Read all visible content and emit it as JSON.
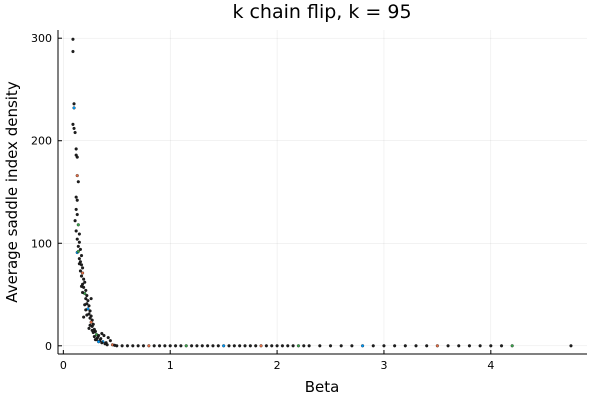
{
  "chart_data": {
    "type": "scatter",
    "title": "k chain flip, k = 95",
    "xlabel": "Beta",
    "ylabel": "Average saddle index density",
    "xlim": [
      -0.05,
      4.9
    ],
    "ylim": [
      -8,
      308
    ],
    "xticks": [
      0,
      1,
      2,
      3,
      4
    ],
    "yticks": [
      0,
      100,
      200,
      300
    ],
    "grid": true,
    "legend": "none",
    "marker_color": "#1f1f1f",
    "marker_accent_colors": [
      "#009af9",
      "#e26f46",
      "#3da44d"
    ],
    "series": [
      {
        "points": [
          [
            0.09,
            299
          ],
          [
            0.09,
            287
          ],
          [
            0.1,
            236
          ],
          [
            0.1,
            232
          ],
          [
            0.09,
            216
          ],
          [
            0.1,
            212
          ],
          [
            0.11,
            208
          ],
          [
            0.12,
            192
          ],
          [
            0.12,
            186
          ],
          [
            0.13,
            184
          ],
          [
            0.13,
            166
          ],
          [
            0.14,
            160
          ],
          [
            0.12,
            145
          ],
          [
            0.13,
            142
          ],
          [
            0.12,
            133
          ],
          [
            0.13,
            128
          ],
          [
            0.11,
            122
          ],
          [
            0.14,
            118
          ],
          [
            0.12,
            112
          ],
          [
            0.15,
            109
          ],
          [
            0.13,
            104
          ],
          [
            0.15,
            101
          ],
          [
            0.14,
            97
          ],
          [
            0.16,
            94
          ],
          [
            0.13,
            91
          ],
          [
            0.17,
            88
          ],
          [
            0.15,
            85
          ],
          [
            0.16,
            82
          ],
          [
            0.17,
            79
          ],
          [
            0.18,
            76
          ],
          [
            0.16,
            73
          ],
          [
            0.18,
            71
          ],
          [
            0.17,
            68
          ],
          [
            0.19,
            65
          ],
          [
            0.2,
            62
          ],
          [
            0.18,
            60
          ],
          [
            0.19,
            57
          ],
          [
            0.21,
            54
          ],
          [
            0.2,
            51
          ],
          [
            0.22,
            49
          ],
          [
            0.21,
            46
          ],
          [
            0.23,
            44
          ],
          [
            0.22,
            41
          ],
          [
            0.24,
            39
          ],
          [
            0.26,
            46
          ],
          [
            0.23,
            36
          ],
          [
            0.25,
            34
          ],
          [
            0.24,
            31
          ],
          [
            0.26,
            29
          ],
          [
            0.19,
            28
          ],
          [
            0.25,
            27
          ],
          [
            0.27,
            25
          ],
          [
            0.26,
            23
          ],
          [
            0.28,
            21
          ],
          [
            0.27,
            19
          ],
          [
            0.24,
            17
          ],
          [
            0.29,
            16
          ],
          [
            0.3,
            14
          ],
          [
            0.28,
            13
          ],
          [
            0.31,
            11
          ],
          [
            0.33,
            10
          ],
          [
            0.29,
            9
          ],
          [
            0.32,
            8
          ],
          [
            0.35,
            7
          ],
          [
            0.3,
            6
          ],
          [
            0.34,
            5
          ],
          [
            0.37,
            4
          ],
          [
            0.36,
            3
          ],
          [
            0.4,
            3
          ],
          [
            0.39,
            2
          ],
          [
            0.42,
            8
          ],
          [
            0.44,
            5
          ],
          [
            0.41,
            1
          ],
          [
            0.46,
            1
          ],
          [
            0.48,
            0.5
          ],
          [
            0.36,
            12
          ],
          [
            0.38,
            10
          ],
          [
            0.21,
            35
          ],
          [
            0.18,
            52
          ],
          [
            0.15,
            80
          ],
          [
            0.14,
            92
          ],
          [
            0.17,
            58
          ],
          [
            0.2,
            40
          ],
          [
            0.22,
            30
          ],
          [
            0.25,
            20
          ],
          [
            0.27,
            15
          ],
          [
            0.31,
            6
          ],
          [
            0.33,
            4
          ]
        ]
      },
      {
        "points": [
          [
            0.5,
            0
          ],
          [
            0.55,
            0
          ],
          [
            0.6,
            0
          ],
          [
            0.65,
            0
          ],
          [
            0.7,
            0
          ],
          [
            0.75,
            0
          ],
          [
            0.8,
            0
          ],
          [
            0.85,
            0
          ],
          [
            0.9,
            0
          ],
          [
            0.95,
            0
          ],
          [
            1.0,
            0
          ],
          [
            1.05,
            0
          ],
          [
            1.1,
            0
          ],
          [
            1.15,
            0
          ],
          [
            1.2,
            0
          ],
          [
            1.25,
            0
          ],
          [
            1.3,
            0
          ],
          [
            1.35,
            0
          ],
          [
            1.4,
            0
          ],
          [
            1.45,
            0
          ],
          [
            1.5,
            0
          ],
          [
            1.55,
            0
          ],
          [
            1.6,
            0
          ],
          [
            1.65,
            0
          ],
          [
            1.7,
            0
          ],
          [
            1.75,
            0
          ],
          [
            1.8,
            0
          ],
          [
            1.85,
            0
          ],
          [
            1.9,
            0
          ],
          [
            1.95,
            0
          ],
          [
            2.0,
            0
          ],
          [
            2.05,
            0
          ],
          [
            2.1,
            0
          ],
          [
            2.15,
            0
          ],
          [
            2.2,
            0
          ],
          [
            2.25,
            0
          ],
          [
            2.3,
            0
          ],
          [
            2.4,
            0
          ],
          [
            2.5,
            0
          ],
          [
            2.6,
            0
          ],
          [
            2.7,
            0
          ],
          [
            2.8,
            0
          ],
          [
            2.9,
            0
          ],
          [
            3.0,
            0
          ],
          [
            3.1,
            0
          ],
          [
            3.2,
            0
          ],
          [
            3.3,
            0
          ],
          [
            3.4,
            0
          ],
          [
            3.5,
            0
          ],
          [
            3.6,
            0
          ],
          [
            3.7,
            0
          ],
          [
            3.8,
            0
          ],
          [
            3.9,
            0
          ],
          [
            4.0,
            0
          ],
          [
            4.1,
            0
          ],
          [
            4.2,
            0
          ],
          [
            4.75,
            0
          ]
        ]
      }
    ]
  }
}
